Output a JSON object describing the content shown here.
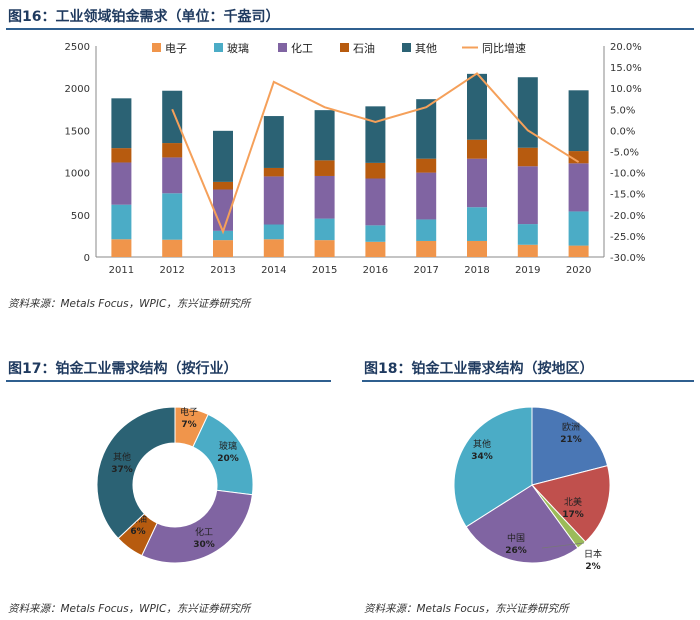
{
  "figures": {
    "fig16_title": "图16：工业领域铂金需求（单位：千盎司）",
    "fig17_title": "图17：铂金工业需求结构（按行业）",
    "fig18_title": "图18：铂金工业需求结构（按地区）"
  },
  "sources": {
    "fig16": "资料来源：Metals Focus，WPIC，东兴证券研究所",
    "fig17": "资料来源：Metals Focus，WPIC，东兴证券研究所",
    "fig18": "资料来源：Metals Focus，东兴证券研究所"
  },
  "colors": {
    "电子": "#F0954B",
    "玻璃": "#4BACC6",
    "化工": "#8064A2",
    "石油": "#B75B0F",
    "其他": "#2B6274",
    "同比增速": "#F5A05A",
    "title": "#1f3a5f",
    "rule": "#2f5f8f",
    "pie_欧洲": "#4A77B5",
    "pie_北美": "#C0504D",
    "pie_日本": "#9BBB59",
    "pie_中国": "#8064A2",
    "pie_其他": "#4BACC6"
  },
  "chart_data": [
    {
      "type": "bar",
      "stacked": true,
      "categories": [
        "2011",
        "2012",
        "2013",
        "2014",
        "2015",
        "2016",
        "2017",
        "2018",
        "2019",
        "2020"
      ],
      "series": [
        {
          "name": "电子",
          "values": [
            210,
            205,
            200,
            210,
            200,
            180,
            190,
            190,
            145,
            135
          ]
        },
        {
          "name": "玻璃",
          "values": [
            410,
            550,
            110,
            175,
            255,
            195,
            255,
            400,
            245,
            405
          ]
        },
        {
          "name": "化工",
          "values": [
            500,
            425,
            490,
            570,
            505,
            555,
            555,
            575,
            685,
            570
          ]
        },
        {
          "name": "石油",
          "values": [
            170,
            170,
            90,
            100,
            185,
            185,
            165,
            225,
            220,
            145
          ]
        },
        {
          "name": "其他",
          "values": [
            590,
            620,
            605,
            615,
            595,
            670,
            705,
            780,
            835,
            720
          ]
        }
      ],
      "line_series": {
        "name": "同比增速",
        "values": [
          null,
          5.0,
          -24.0,
          11.5,
          5.5,
          2.0,
          5.5,
          13.5,
          0.0,
          -7.5
        ],
        "axis": "right"
      },
      "ylim": [
        0,
        2500
      ],
      "yticks": [
        "0",
        "500",
        "1000",
        "1500",
        "2000",
        "2500"
      ],
      "y2lim": [
        -30,
        20
      ],
      "y2ticks": [
        "20.0%",
        "15.0%",
        "10.0%",
        "5.0%",
        "0.0%",
        "-5.0%",
        "-10.0%",
        "-15.0%",
        "-20.0%",
        "-25.0%",
        "-30.0%"
      ],
      "legend_position": "top"
    },
    {
      "type": "pie",
      "donut": true,
      "labels": [
        "电子",
        "玻璃",
        "化工",
        "石油",
        "其他"
      ],
      "values": [
        7,
        20,
        30,
        6,
        37
      ],
      "value_labels": [
        "7%",
        "20%",
        "30%",
        "6%",
        "37%"
      ]
    },
    {
      "type": "pie",
      "donut": false,
      "labels": [
        "欧洲",
        "北美",
        "日本",
        "中国",
        "其他"
      ],
      "values": [
        21,
        17,
        2,
        26,
        34
      ],
      "value_labels": [
        "21%",
        "17%",
        "2%",
        "26%",
        "34%"
      ]
    }
  ]
}
